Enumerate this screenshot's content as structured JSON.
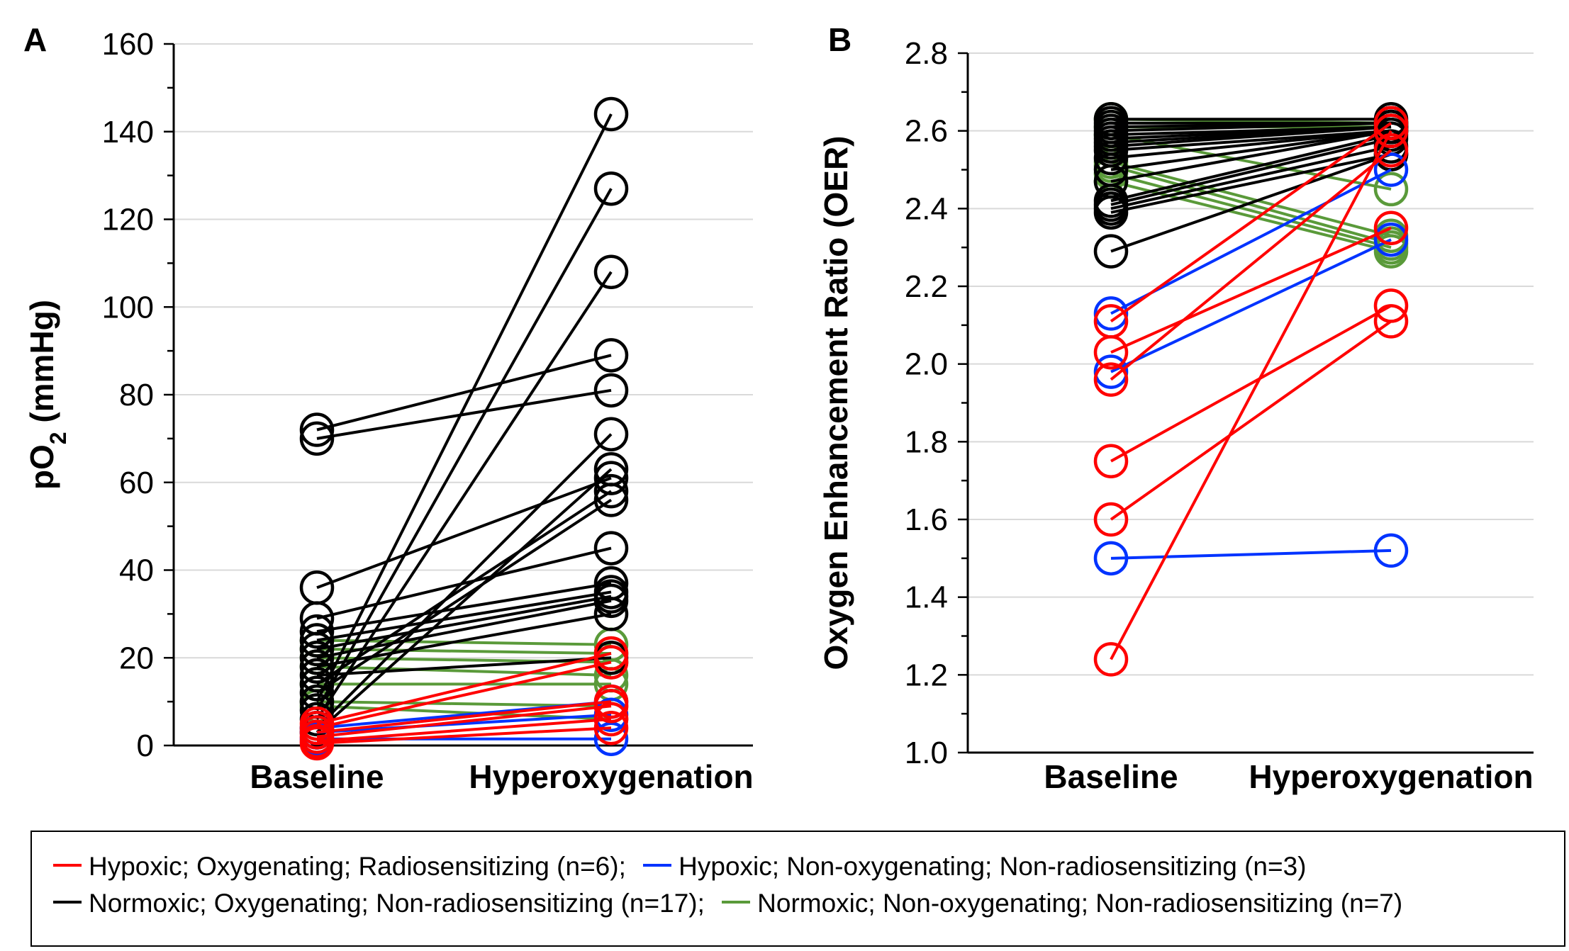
{
  "colors": {
    "red": "#ff0000",
    "blue": "#0033ff",
    "black": "#000000",
    "green": "#5a9a3a",
    "grid": "#d9d9d9"
  },
  "legend": {
    "items": [
      {
        "color": "#ff0000",
        "label": "Hypoxic; Oxygenating; Radiosensitizing (n=6);"
      },
      {
        "color": "#0033ff",
        "label": "Hypoxic; Non-oxygenating; Non-radiosensitizing (n=3)"
      },
      {
        "color": "#000000",
        "label": "Normoxic; Oxygenating; Non-radiosensitizing (n=17);"
      },
      {
        "color": "#5a9a3a",
        "label": "Normoxic; Non-oxygenating; Non-radiosensitizing (n=7)"
      }
    ]
  },
  "chart_data": [
    {
      "panel": "A",
      "type": "line",
      "categories": [
        "Baseline",
        "Hyperoxygenation"
      ],
      "ylabel": "pO",
      "ylabel_sub": "2",
      "ylabel_suffix": " (mmHg)",
      "ylim": [
        0,
        160
      ],
      "yticks": [
        "0",
        "20",
        "40",
        "60",
        "80",
        "100",
        "120",
        "140",
        "160"
      ],
      "grid": true,
      "series": [
        {
          "group": "black",
          "values": [
            72,
            89
          ]
        },
        {
          "group": "black",
          "values": [
            70,
            81
          ]
        },
        {
          "group": "black",
          "values": [
            36,
            61
          ]
        },
        {
          "group": "black",
          "values": [
            29,
            45
          ]
        },
        {
          "group": "black",
          "values": [
            26,
            37
          ]
        },
        {
          "group": "black",
          "values": [
            24,
            35
          ]
        },
        {
          "group": "black",
          "values": [
            22,
            34
          ]
        },
        {
          "group": "black",
          "values": [
            20,
            33
          ]
        },
        {
          "group": "black",
          "values": [
            18,
            30
          ]
        },
        {
          "group": "black",
          "values": [
            16,
            20
          ]
        },
        {
          "group": "black",
          "values": [
            14,
            58
          ]
        },
        {
          "group": "black",
          "values": [
            12,
            56
          ]
        },
        {
          "group": "black",
          "values": [
            10,
            144
          ]
        },
        {
          "group": "black",
          "values": [
            8,
            127
          ]
        },
        {
          "group": "black",
          "values": [
            6,
            108
          ]
        },
        {
          "group": "black",
          "values": [
            4,
            71
          ]
        },
        {
          "group": "black",
          "values": [
            3,
            63
          ]
        },
        {
          "group": "green",
          "values": [
            24,
            23
          ]
        },
        {
          "group": "green",
          "values": [
            22,
            21
          ]
        },
        {
          "group": "green",
          "values": [
            20,
            19
          ]
        },
        {
          "group": "green",
          "values": [
            18,
            16
          ]
        },
        {
          "group": "green",
          "values": [
            14,
            14
          ]
        },
        {
          "group": "green",
          "values": [
            10,
            9
          ]
        },
        {
          "group": "green",
          "values": [
            9,
            6
          ]
        },
        {
          "group": "red",
          "values": [
            5,
            21
          ]
        },
        {
          "group": "red",
          "values": [
            4,
            19
          ]
        },
        {
          "group": "red",
          "values": [
            3,
            10
          ]
        },
        {
          "group": "red",
          "values": [
            2,
            9
          ]
        },
        {
          "group": "red",
          "values": [
            1,
            6
          ]
        },
        {
          "group": "red",
          "values": [
            0.5,
            4
          ]
        },
        {
          "group": "blue",
          "values": [
            4,
            10
          ]
        },
        {
          "group": "blue",
          "values": [
            3,
            7
          ]
        },
        {
          "group": "blue",
          "values": [
            1.5,
            1.5
          ]
        }
      ]
    },
    {
      "panel": "B",
      "type": "line",
      "categories": [
        "Baseline",
        "Hyperoxygenation"
      ],
      "ylabel": "Oxygen Enhancement Ratio (OER)",
      "ylim": [
        1.0,
        2.8
      ],
      "yticks": [
        "1.0",
        "1.2",
        "1.4",
        "1.6",
        "1.8",
        "2.0",
        "2.2",
        "2.4",
        "2.6",
        "2.8"
      ],
      "grid": true,
      "series": [
        {
          "group": "black",
          "values": [
            2.63,
            2.63
          ]
        },
        {
          "group": "black",
          "values": [
            2.62,
            2.62
          ]
        },
        {
          "group": "black",
          "values": [
            2.61,
            2.62
          ]
        },
        {
          "group": "black",
          "values": [
            2.6,
            2.62
          ]
        },
        {
          "group": "black",
          "values": [
            2.59,
            2.61
          ]
        },
        {
          "group": "black",
          "values": [
            2.58,
            2.61
          ]
        },
        {
          "group": "black",
          "values": [
            2.57,
            2.61
          ]
        },
        {
          "group": "black",
          "values": [
            2.56,
            2.61
          ]
        },
        {
          "group": "black",
          "values": [
            2.55,
            2.6
          ]
        },
        {
          "group": "black",
          "values": [
            2.53,
            2.6
          ]
        },
        {
          "group": "black",
          "values": [
            2.5,
            2.6
          ]
        },
        {
          "group": "black",
          "values": [
            2.47,
            2.6
          ]
        },
        {
          "group": "black",
          "values": [
            2.42,
            2.59
          ]
        },
        {
          "group": "black",
          "values": [
            2.41,
            2.58
          ]
        },
        {
          "group": "black",
          "values": [
            2.4,
            2.56
          ]
        },
        {
          "group": "black",
          "values": [
            2.39,
            2.54
          ]
        },
        {
          "group": "black",
          "values": [
            2.29,
            2.54
          ]
        },
        {
          "group": "green",
          "values": [
            2.63,
            2.62
          ]
        },
        {
          "group": "green",
          "values": [
            2.61,
            2.61
          ]
        },
        {
          "group": "green",
          "values": [
            2.59,
            2.45
          ]
        },
        {
          "group": "green",
          "values": [
            2.52,
            2.33
          ]
        },
        {
          "group": "green",
          "values": [
            2.51,
            2.31
          ]
        },
        {
          "group": "green",
          "values": [
            2.49,
            2.3
          ]
        },
        {
          "group": "green",
          "values": [
            2.47,
            2.29
          ]
        },
        {
          "group": "red",
          "values": [
            2.11,
            2.62
          ]
        },
        {
          "group": "red",
          "values": [
            2.03,
            2.35
          ]
        },
        {
          "group": "red",
          "values": [
            1.96,
            2.55
          ]
        },
        {
          "group": "red",
          "values": [
            1.75,
            2.15
          ]
        },
        {
          "group": "red",
          "values": [
            1.6,
            2.11
          ]
        },
        {
          "group": "red",
          "values": [
            1.24,
            2.6
          ]
        },
        {
          "group": "blue",
          "values": [
            2.13,
            2.5
          ]
        },
        {
          "group": "blue",
          "values": [
            1.98,
            2.32
          ]
        },
        {
          "group": "blue",
          "values": [
            1.5,
            1.52
          ]
        }
      ]
    }
  ]
}
